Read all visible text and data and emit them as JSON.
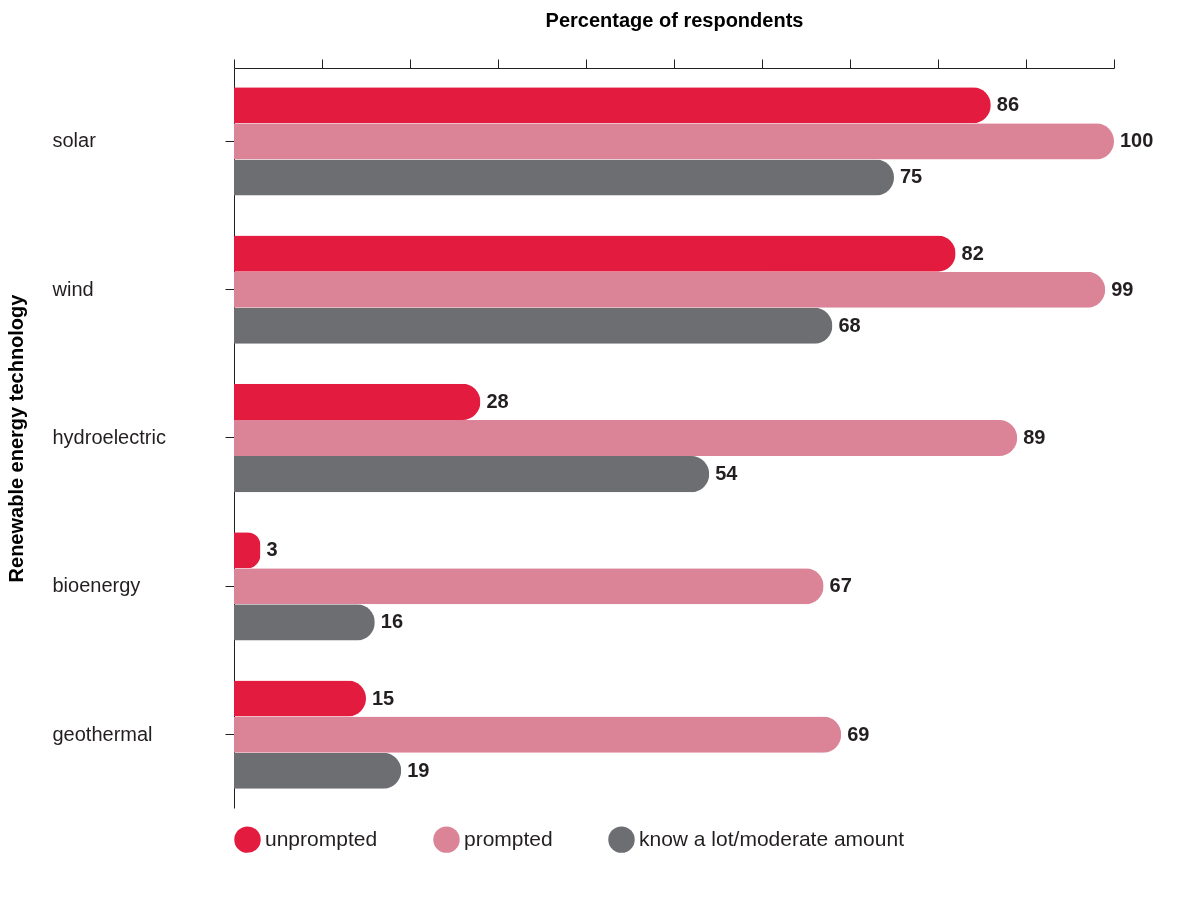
{
  "chart_data": {
    "type": "bar",
    "orientation": "horizontal",
    "xlabel": "Percentage of respondents",
    "ylabel": "Renewable energy technology",
    "categories": [
      "solar",
      "wind",
      "hydroelectric",
      "bioenergy",
      "geothermal"
    ],
    "series": [
      {
        "name": "unprompted",
        "color": "#e31b3f",
        "values": [
          86,
          82,
          28,
          3,
          15
        ]
      },
      {
        "name": "prompted",
        "color": "#dc8497",
        "values": [
          100,
          99,
          89,
          67,
          69
        ]
      },
      {
        "name": "know a lot/moderate amount",
        "color": "#6d6e71",
        "values": [
          75,
          68,
          54,
          16,
          19
        ]
      }
    ],
    "xlim": [
      0,
      100
    ],
    "xticks": [
      {
        "value": 0,
        "label": null
      },
      {
        "value": 10,
        "label": null
      },
      {
        "value": 20,
        "label": null
      },
      {
        "value": 30,
        "label": null
      },
      {
        "value": 40,
        "label": null
      },
      {
        "value": 50,
        "label": null
      },
      {
        "value": 60,
        "label": null
      },
      {
        "value": 70,
        "label": null
      },
      {
        "value": 80,
        "label": null
      },
      {
        "value": 90,
        "label": null
      },
      {
        "value": 100,
        "label": null
      }
    ],
    "tick_labels": "y",
    "data_labels": true,
    "legend": "bottom"
  }
}
